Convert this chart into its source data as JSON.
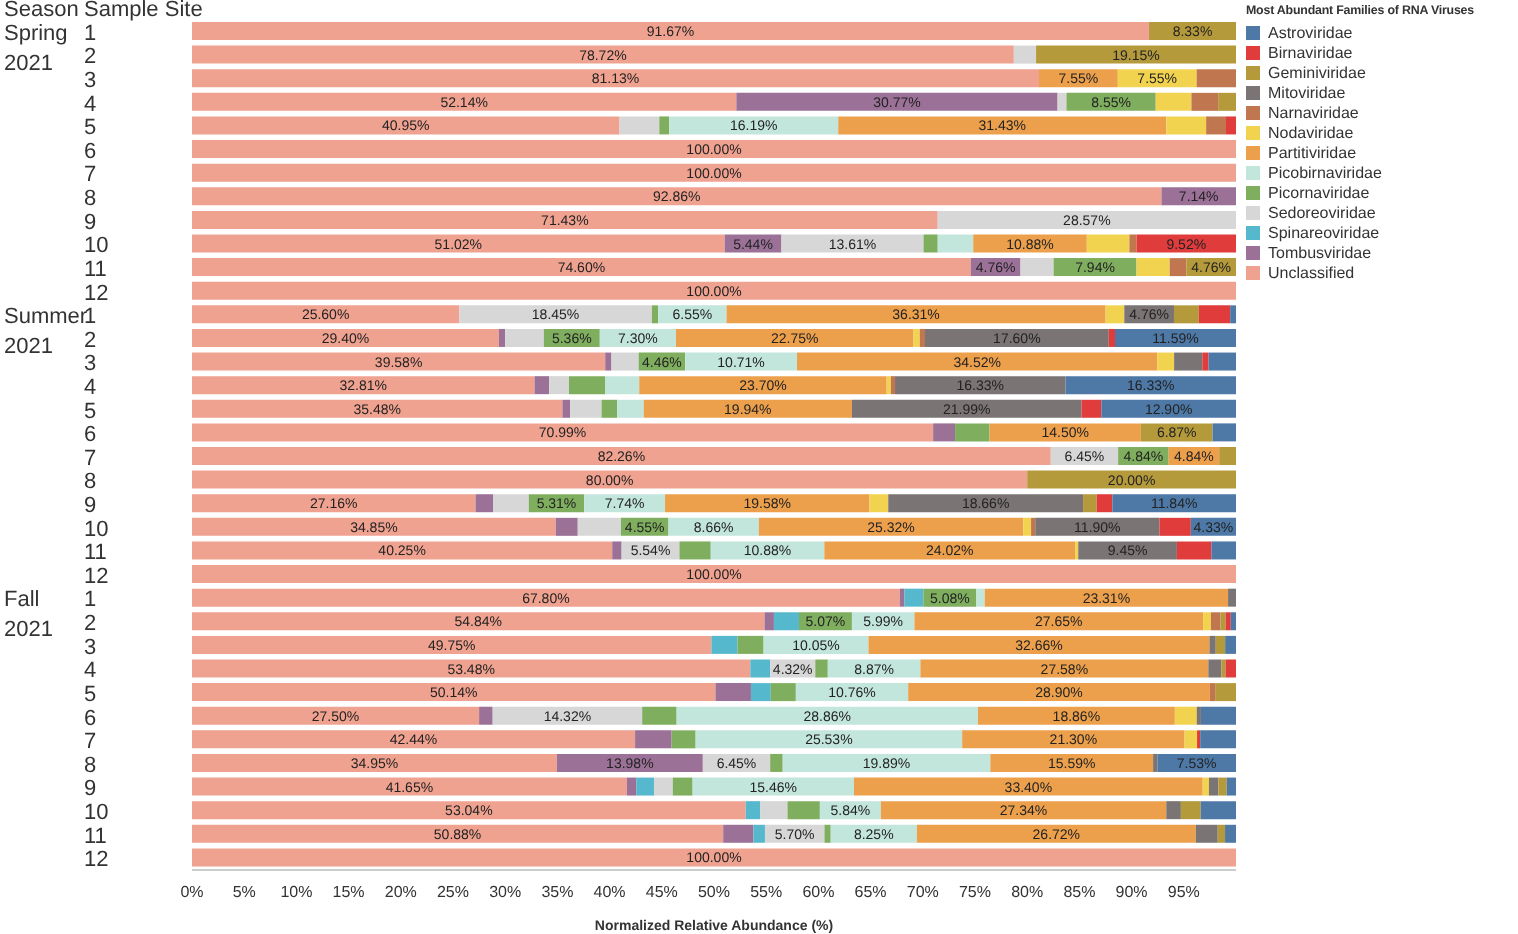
{
  "chart_data": {
    "type": "bar",
    "orientation": "horizontal",
    "stacked": true,
    "legend": "right",
    "legend_title": "Most Abundant Families of RNA Viruses",
    "xlabel": "Normalized Relative Abundance (%)",
    "annotations": [
      "Season",
      "Sample Site",
      "Spring 2021",
      "Summer 2021",
      "Fall 2021"
    ],
    "categories": [
      "1",
      "2",
      "3",
      "4",
      "5",
      "6",
      "7",
      "8",
      "9",
      "10",
      "11",
      "12",
      "1",
      "2",
      "3",
      "4",
      "5",
      "6",
      "7",
      "8",
      "9",
      "10",
      "11",
      "12",
      "1",
      "2",
      "3",
      "4",
      "5",
      "6",
      "7",
      "8",
      "9",
      "10",
      "11",
      "12"
    ],
    "xlim": [
      0,
      100
    ],
    "xticks": [
      {
        "value": 0,
        "label": "0%"
      },
      {
        "value": 5,
        "label": "5%"
      },
      {
        "value": 10,
        "label": "10%"
      },
      {
        "value": 15,
        "label": "15%"
      },
      {
        "value": 20,
        "label": "20%"
      },
      {
        "value": 25,
        "label": "25%"
      },
      {
        "value": 30,
        "label": "30%"
      },
      {
        "value": 35,
        "label": "35%"
      },
      {
        "value": 40,
        "label": "40%"
      },
      {
        "value": 45,
        "label": "45%"
      },
      {
        "value": 50,
        "label": "50%"
      },
      {
        "value": 55,
        "label": "55%"
      },
      {
        "value": 60,
        "label": "60%"
      },
      {
        "value": 65,
        "label": "65%"
      },
      {
        "value": 70,
        "label": "70%"
      },
      {
        "value": 75,
        "label": "75%"
      },
      {
        "value": 80,
        "label": "80%"
      },
      {
        "value": 85,
        "label": "85%"
      },
      {
        "value": 90,
        "label": "90%"
      },
      {
        "value": 95,
        "label": "95%"
      }
    ],
    "series": [
      {
        "name": "Unclassified",
        "color": "#f0a290",
        "values": [
          91.67,
          78.72,
          81.13,
          52.14,
          40.95,
          100,
          100,
          92.86,
          71.43,
          51.02,
          74.6,
          100,
          25.6,
          29.4,
          39.58,
          32.81,
          35.48,
          70.99,
          82.26,
          80.0,
          27.16,
          34.85,
          40.25,
          100,
          67.8,
          54.84,
          49.75,
          53.48,
          50.14,
          27.5,
          42.44,
          34.95,
          41.65,
          53.04,
          50.88,
          100
        ],
        "value_labels": [
          "91.67%",
          "78.72%",
          "81.13%",
          "52.14%",
          "40.95%",
          "100.00%",
          "100.00%",
          "92.86%",
          "71.43%",
          "51.02%",
          "74.60%",
          "100.00%",
          "25.60%",
          "29.40%",
          "39.58%",
          "32.81%",
          "35.48%",
          "70.99%",
          "82.26%",
          "80.00%",
          "27.16%",
          "34.85%",
          "40.25%",
          "100.00%",
          "67.80%",
          "54.84%",
          "49.75%",
          "53.48%",
          "50.14%",
          "27.50%",
          "42.44%",
          "34.95%",
          "41.65%",
          "53.04%",
          "50.88%",
          "100.00%"
        ]
      },
      {
        "name": "Tombusviridae",
        "color": "#9c7198",
        "values": [
          null,
          null,
          null,
          30.77,
          null,
          null,
          null,
          7.14,
          null,
          5.44,
          4.76,
          null,
          null,
          0.6,
          0.6,
          1.4,
          0.75,
          2.1,
          null,
          null,
          1.7,
          2.1,
          0.9,
          null,
          0.45,
          0.9,
          null,
          null,
          3.4,
          1.3,
          3.5,
          13.98,
          0.9,
          null,
          2.9,
          null
        ],
        "value_labels": [
          null,
          null,
          null,
          "30.77%",
          null,
          null,
          null,
          "7.14%",
          null,
          "5.44%",
          "4.76%",
          null,
          null,
          null,
          null,
          null,
          null,
          null,
          null,
          null,
          null,
          null,
          null,
          null,
          null,
          null,
          null,
          null,
          null,
          null,
          null,
          "13.98%",
          null,
          null,
          null,
          null
        ]
      },
      {
        "name": "Spinareoviridae",
        "color": "#56b8cc",
        "values": [
          null,
          null,
          null,
          null,
          null,
          null,
          null,
          null,
          null,
          null,
          null,
          null,
          null,
          null,
          null,
          null,
          null,
          null,
          null,
          null,
          null,
          null,
          null,
          null,
          1.8,
          2.4,
          2.5,
          1.9,
          1.9,
          null,
          null,
          null,
          1.7,
          1.4,
          1.1,
          null
        ]
      },
      {
        "name": "Sedoreoviridae",
        "color": "#d7d7d7",
        "values": [
          null,
          2.13,
          null,
          0.85,
          3.81,
          null,
          null,
          null,
          28.57,
          13.61,
          3.17,
          null,
          18.45,
          3.7,
          2.6,
          1.9,
          3.0,
          null,
          6.45,
          null,
          3.4,
          4.14,
          5.54,
          null,
          null,
          null,
          null,
          4.32,
          null,
          14.32,
          null,
          6.45,
          1.8,
          2.6,
          5.7,
          null
        ],
        "value_labels": [
          null,
          null,
          null,
          null,
          null,
          null,
          null,
          null,
          "28.57%",
          "13.61%",
          null,
          null,
          "18.45%",
          null,
          null,
          null,
          null,
          null,
          "6.45%",
          null,
          null,
          null,
          "5.54%",
          null,
          null,
          null,
          null,
          "4.32%",
          null,
          "14.32%",
          null,
          "6.45%",
          null,
          null,
          "5.70%",
          null
        ]
      },
      {
        "name": "Picornaviridae",
        "color": "#7fae5f",
        "values": [
          null,
          null,
          null,
          8.55,
          0.95,
          null,
          null,
          null,
          null,
          1.36,
          7.94,
          null,
          0.6,
          5.36,
          4.46,
          3.45,
          1.5,
          3.3,
          4.84,
          null,
          5.31,
          4.55,
          3.0,
          null,
          5.08,
          5.07,
          2.5,
          1.2,
          2.4,
          3.3,
          2.3,
          1.2,
          1.9,
          3.1,
          0.6,
          null
        ],
        "value_labels": [
          null,
          null,
          null,
          "8.55%",
          null,
          null,
          null,
          null,
          null,
          null,
          "7.94%",
          null,
          null,
          "5.36%",
          "4.46%",
          null,
          null,
          null,
          "4.84%",
          null,
          "5.31%",
          "4.55%",
          null,
          null,
          "5.08%",
          "5.07%",
          null,
          null,
          null,
          null,
          null,
          null,
          null,
          null,
          null,
          null
        ]
      },
      {
        "name": "Picobirnaviridae",
        "color": "#c3e6dc",
        "values": [
          null,
          null,
          null,
          null,
          16.19,
          null,
          null,
          null,
          null,
          3.4,
          null,
          null,
          6.55,
          7.3,
          10.71,
          3.28,
          2.54,
          null,
          null,
          null,
          7.74,
          8.66,
          10.88,
          null,
          0.8,
          5.99,
          10.05,
          8.87,
          10.76,
          28.86,
          25.53,
          19.89,
          15.46,
          5.84,
          8.25,
          null
        ],
        "value_labels": [
          null,
          null,
          null,
          null,
          "16.19%",
          null,
          null,
          null,
          null,
          null,
          null,
          null,
          "6.55%",
          "7.30%",
          "10.71%",
          null,
          null,
          null,
          null,
          null,
          "7.74%",
          "8.66%",
          "10.88%",
          null,
          null,
          "5.99%",
          "10.05%",
          "8.87%",
          "10.76%",
          "28.86%",
          "25.53%",
          "19.89%",
          "15.46%",
          "5.84%",
          "8.25%",
          null
        ]
      },
      {
        "name": "Partitiviridae",
        "color": "#eda04c",
        "values": [
          null,
          null,
          7.55,
          null,
          31.43,
          null,
          null,
          null,
          null,
          10.88,
          null,
          null,
          36.31,
          22.75,
          34.52,
          23.7,
          19.94,
          14.5,
          4.84,
          null,
          19.58,
          25.32,
          24.02,
          null,
          23.31,
          27.65,
          32.66,
          27.58,
          28.9,
          18.86,
          21.3,
          15.59,
          33.4,
          27.34,
          26.72,
          null
        ],
        "value_labels": [
          null,
          null,
          "7.55%",
          null,
          "31.43%",
          null,
          null,
          null,
          null,
          "10.88%",
          null,
          null,
          "36.31%",
          "22.75%",
          "34.52%",
          "23.70%",
          "19.94%",
          "14.50%",
          "4.84%",
          null,
          "19.58%",
          "25.32%",
          "24.02%",
          null,
          "23.31%",
          "27.65%",
          "32.66%",
          "27.58%",
          "28.90%",
          "18.86%",
          "21.30%",
          "15.59%",
          "33.40%",
          "27.34%",
          "26.72%",
          null
        ]
      },
      {
        "name": "Nodaviridae",
        "color": "#f2d34f",
        "values": [
          null,
          null,
          7.55,
          3.42,
          3.81,
          null,
          null,
          null,
          null,
          4.08,
          3.18,
          null,
          1.79,
          0.6,
          1.6,
          0.4,
          null,
          null,
          null,
          null,
          1.8,
          0.75,
          0.3,
          null,
          null,
          0.75,
          null,
          null,
          null,
          2.1,
          1.2,
          null,
          0.6,
          null,
          null,
          null
        ],
        "value_labels": [
          null,
          null,
          "7.55%",
          null,
          null,
          null,
          null,
          null,
          null,
          null,
          null,
          null,
          null,
          null,
          null,
          null,
          null,
          null,
          null,
          null,
          null,
          null,
          null,
          null,
          null,
          null,
          null,
          null,
          null,
          null,
          null,
          null,
          null,
          null,
          null,
          null
        ]
      },
      {
        "name": "Narnaviridae",
        "color": "#c0764f",
        "values": [
          null,
          null,
          3.77,
          2.56,
          1.9,
          null,
          null,
          null,
          null,
          0.69,
          1.59,
          null,
          null,
          0.5,
          null,
          0.4,
          null,
          null,
          null,
          null,
          null,
          0.4,
          null,
          null,
          null,
          0.9,
          null,
          null,
          0.5,
          null,
          null,
          null,
          null,
          null,
          null,
          null
        ]
      },
      {
        "name": "Mitoviridae",
        "color": "#7b7474",
        "values": [
          null,
          null,
          null,
          null,
          null,
          null,
          null,
          null,
          null,
          null,
          null,
          null,
          4.76,
          17.6,
          2.7,
          16.33,
          21.99,
          null,
          null,
          null,
          18.66,
          11.9,
          9.45,
          null,
          0.76,
          null,
          0.6,
          1.25,
          null,
          0.4,
          null,
          0.41,
          0.9,
          1.4,
          2.1,
          null
        ],
        "value_labels": [
          null,
          null,
          null,
          null,
          null,
          null,
          null,
          null,
          null,
          null,
          null,
          null,
          "4.76%",
          "17.60%",
          null,
          "16.33%",
          "21.99%",
          null,
          null,
          null,
          "18.66%",
          "11.90%",
          "9.45%",
          null,
          null,
          null,
          null,
          null,
          null,
          null,
          null,
          null,
          null,
          null,
          null,
          null
        ]
      },
      {
        "name": "Geminiviridae",
        "color": "#b59a3c",
        "values": [
          8.33,
          19.15,
          null,
          1.71,
          null,
          null,
          null,
          null,
          null,
          null,
          4.76,
          null,
          2.38,
          null,
          null,
          null,
          null,
          6.87,
          1.61,
          20.0,
          1.3,
          null,
          null,
          null,
          null,
          0.5,
          0.9,
          0.4,
          2.0,
          null,
          null,
          null,
          0.8,
          1.9,
          0.7,
          null
        ],
        "value_labels": [
          "8.33%",
          "19.15%",
          null,
          null,
          null,
          null,
          null,
          null,
          null,
          null,
          "4.76%",
          null,
          null,
          null,
          null,
          null,
          null,
          "6.87%",
          null,
          "20.00%",
          null,
          null,
          null,
          null,
          null,
          null,
          null,
          null,
          null,
          null,
          null,
          null,
          null,
          null,
          null,
          null
        ]
      },
      {
        "name": "Birnaviridae",
        "color": "#e03c3c",
        "values": [
          null,
          null,
          null,
          null,
          0.96,
          null,
          null,
          null,
          null,
          9.52,
          null,
          null,
          3.0,
          0.6,
          0.6,
          null,
          1.9,
          null,
          null,
          null,
          1.51,
          3.0,
          3.3,
          null,
          null,
          0.5,
          null,
          1.0,
          null,
          null,
          0.3,
          null,
          null,
          null,
          null,
          null
        ],
        "value_labels": [
          null,
          null,
          null,
          null,
          null,
          null,
          null,
          null,
          null,
          "9.52%",
          null,
          null,
          null,
          null,
          null,
          null,
          null,
          null,
          null,
          null,
          null,
          null,
          null,
          null,
          null,
          null,
          null,
          null,
          null,
          null,
          null,
          null,
          null,
          null,
          null,
          null
        ]
      },
      {
        "name": "Astroviridae",
        "color": "#4e79a7",
        "values": [
          null,
          null,
          null,
          null,
          null,
          null,
          null,
          null,
          null,
          null,
          null,
          null,
          0.56,
          11.59,
          2.63,
          16.33,
          12.9,
          2.24,
          null,
          null,
          11.84,
          4.33,
          2.36,
          null,
          null,
          0.5,
          1.04,
          null,
          null,
          3.36,
          3.43,
          7.53,
          0.89,
          3.38,
          1.05,
          null
        ],
        "value_labels": [
          null,
          null,
          null,
          null,
          null,
          null,
          null,
          null,
          null,
          null,
          null,
          null,
          null,
          "11.59%",
          null,
          "16.33%",
          "12.90%",
          null,
          null,
          null,
          "11.84%",
          "4.33%",
          null,
          null,
          null,
          null,
          null,
          null,
          null,
          null,
          null,
          "7.53%",
          null,
          null,
          null,
          null
        ]
      }
    ]
  }
}
